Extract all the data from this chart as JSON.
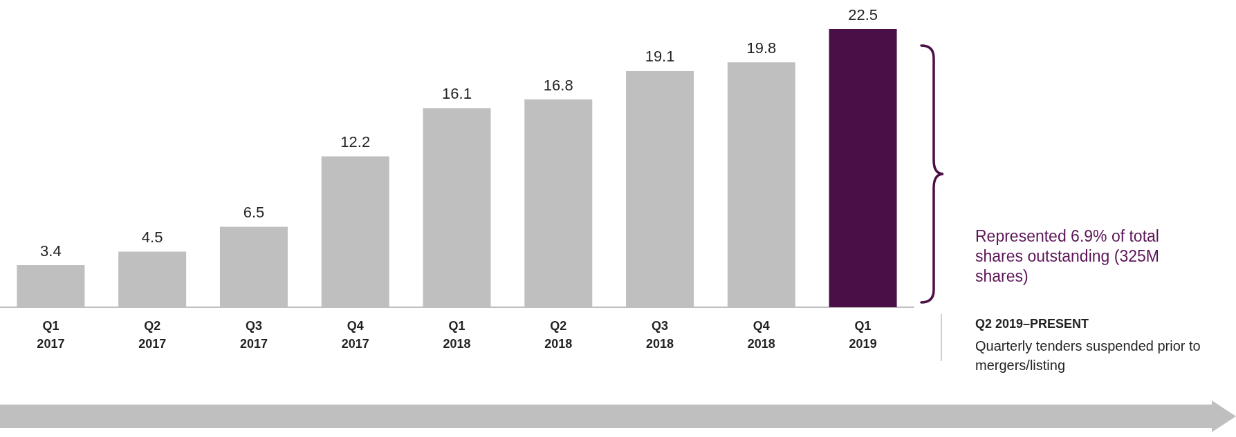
{
  "chart_data": {
    "type": "bar",
    "categories": [
      "Q1\n2017",
      "Q2\n2017",
      "Q3\n2017",
      "Q4\n2017",
      "Q1\n2018",
      "Q2\n2018",
      "Q3\n2018",
      "Q4\n2018",
      "Q1\n2019"
    ],
    "values": [
      3.4,
      4.5,
      6.5,
      12.2,
      16.1,
      16.8,
      19.1,
      19.8,
      22.5
    ],
    "colors": [
      "#bfbfbf",
      "#bfbfbf",
      "#bfbfbf",
      "#bfbfbf",
      "#bfbfbf",
      "#bfbfbf",
      "#bfbfbf",
      "#bfbfbf",
      "#4b0f48"
    ],
    "data_labels": true,
    "annotations": [
      "Represented 6.9% of total shares outstanding (325M shares)",
      "Q2 2019–PRESENT",
      "Quarterly tenders suspended prior to mergers/listing"
    ]
  }
}
